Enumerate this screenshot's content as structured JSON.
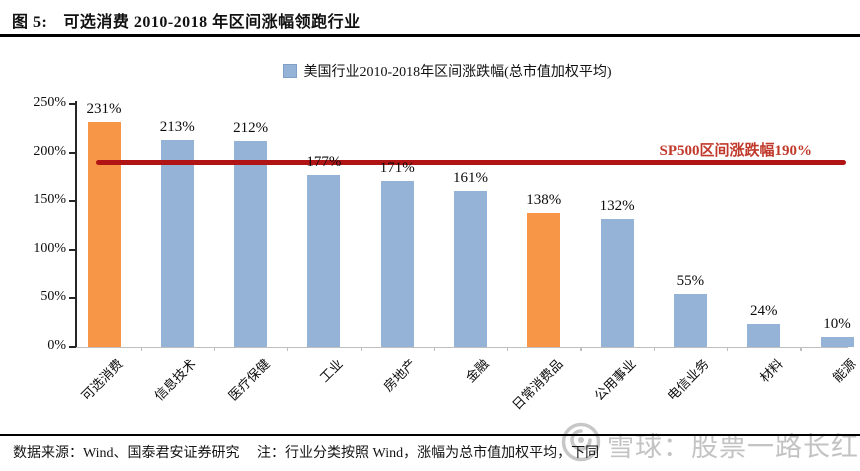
{
  "figure": {
    "label": "图  5:",
    "title": "可选消费 2010-2018 年区间涨幅领跑行业"
  },
  "legend": {
    "label": "美国行业2010-2018年区间涨跌幅(总市值加权平均)",
    "marker_color": "#95B3D7"
  },
  "chart_data": {
    "type": "bar",
    "title": "可选消费 2010-2018 年区间涨幅领跑行业",
    "legend_entries": [
      "美国行业2010-2018年区间涨跌幅(总市值加权平均)"
    ],
    "legend_position": "top-center",
    "categories": [
      "可选消费",
      "信息技术",
      "医疗保健",
      "工业",
      "房地产",
      "金融",
      "日常消费品",
      "公用事业",
      "电信业务",
      "材料",
      "能源"
    ],
    "values": [
      231,
      213,
      212,
      177,
      171,
      161,
      138,
      132,
      55,
      24,
      10
    ],
    "value_labels": [
      "231%",
      "213%",
      "212%",
      "177%",
      "171%",
      "161%",
      "138%",
      "132%",
      "55%",
      "24%",
      "10%"
    ],
    "colors": [
      "#F79646",
      "#95B3D7",
      "#95B3D7",
      "#95B3D7",
      "#95B3D7",
      "#95B3D7",
      "#F79646",
      "#95B3D7",
      "#95B3D7",
      "#95B3D7",
      "#95B3D7"
    ],
    "highlight_color": "#F79646",
    "default_bar_color": "#95B3D7",
    "xlabel": "",
    "ylabel": "",
    "ylim": [
      0,
      250
    ],
    "grid": false,
    "yticks": {
      "values": [
        0,
        50,
        100,
        150,
        200,
        250
      ],
      "labels": [
        "0%",
        "50%",
        "100%",
        "150%",
        "200%",
        "250%"
      ]
    },
    "reference_line": {
      "value": 190,
      "label": "SP500区间涨跌幅190%",
      "line_color": "#B11414",
      "label_color": "#C0392B"
    }
  },
  "watermark": {
    "text": "雪球：股票一路长红"
  },
  "footer": {
    "source": "数据来源：Wind、国泰君安证券研究",
    "note": "注：行业分类按照 Wind，涨幅为总市值加权平均，下同"
  }
}
